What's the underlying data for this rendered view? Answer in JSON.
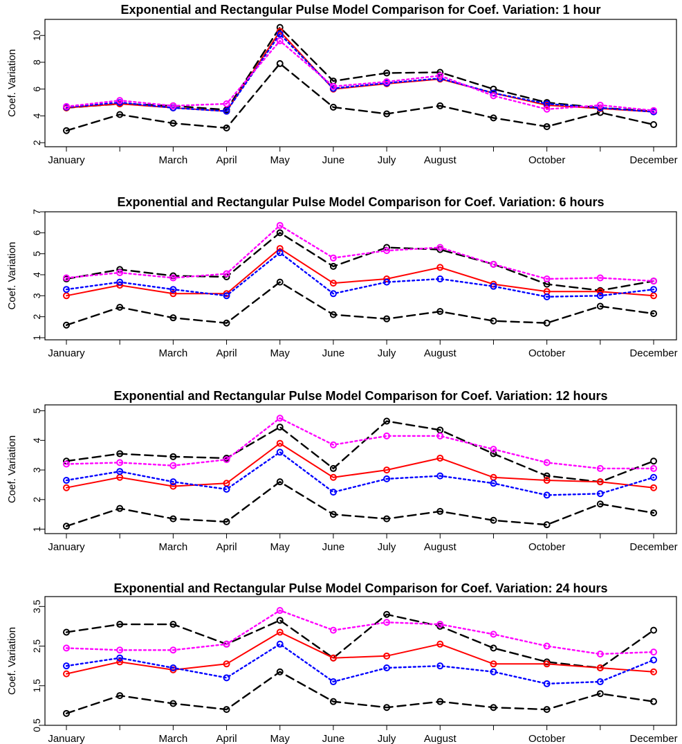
{
  "chart_data": [
    {
      "type": "line",
      "title": "Exponential and Rectangular Pulse Model Comparison for Coef. Variation: 1 hour",
      "xlabel": "",
      "ylabel": "Coef. Variation",
      "categories": [
        "January",
        "",
        "March",
        "April",
        "May",
        "June",
        "July",
        "August",
        "",
        "October",
        "",
        "December"
      ],
      "ylim": [
        1.7,
        11.2
      ],
      "yticks": [
        2,
        4,
        6,
        8,
        10
      ],
      "series": [
        {
          "color": "#000000",
          "dash": "dashed",
          "values": [
            4.6,
            4.9,
            4.75,
            4.45,
            10.6,
            6.6,
            7.2,
            7.25,
            6.0,
            5.0,
            4.6,
            4.35
          ]
        },
        {
          "color": "#000000",
          "dash": "dashed",
          "values": [
            2.9,
            4.1,
            3.45,
            3.1,
            7.9,
            4.65,
            4.15,
            4.75,
            3.85,
            3.2,
            4.25,
            3.35
          ]
        },
        {
          "color": "#ff0000",
          "dash": "solid",
          "values": [
            4.6,
            4.9,
            4.6,
            4.35,
            10.3,
            6.0,
            6.4,
            6.75,
            5.7,
            4.8,
            4.55,
            4.3
          ]
        },
        {
          "color": "#0000ff",
          "dash": "dotted",
          "values": [
            4.65,
            5.0,
            4.6,
            4.35,
            10.1,
            6.05,
            6.45,
            6.8,
            5.7,
            4.9,
            4.6,
            4.3
          ]
        },
        {
          "color": "#ff00ff",
          "dash": "dotted",
          "values": [
            4.7,
            5.15,
            4.75,
            4.9,
            9.6,
            6.2,
            6.55,
            7.0,
            5.5,
            4.5,
            4.8,
            4.4
          ]
        }
      ]
    },
    {
      "type": "line",
      "title": "Exponential and Rectangular Pulse Model Comparison for Coef. Variation: 6 hours",
      "xlabel": "",
      "ylabel": "Coef. Variation",
      "categories": [
        "January",
        "",
        "March",
        "April",
        "May",
        "June",
        "July",
        "August",
        "",
        "October",
        "",
        "December"
      ],
      "ylim": [
        0.9,
        7.0
      ],
      "yticks": [
        1,
        2,
        3,
        4,
        5,
        6,
        7
      ],
      "series": [
        {
          "color": "#000000",
          "dash": "dashed",
          "values": [
            3.8,
            4.25,
            3.95,
            3.9,
            6.0,
            4.4,
            5.3,
            5.2,
            4.5,
            3.55,
            3.25,
            3.7
          ]
        },
        {
          "color": "#000000",
          "dash": "dashed",
          "values": [
            1.6,
            2.45,
            1.95,
            1.7,
            3.65,
            2.1,
            1.9,
            2.25,
            1.8,
            1.7,
            2.5,
            2.15
          ]
        },
        {
          "color": "#ff0000",
          "dash": "solid",
          "values": [
            3.0,
            3.5,
            3.1,
            3.1,
            5.25,
            3.6,
            3.8,
            4.35,
            3.55,
            3.2,
            3.2,
            3.0
          ]
        },
        {
          "color": "#0000ff",
          "dash": "dotted",
          "values": [
            3.3,
            3.65,
            3.3,
            3.0,
            5.05,
            3.1,
            3.65,
            3.8,
            3.45,
            2.95,
            3.0,
            3.3
          ]
        },
        {
          "color": "#ff00ff",
          "dash": "dotted",
          "values": [
            3.85,
            4.1,
            3.85,
            4.05,
            6.35,
            4.8,
            5.15,
            5.3,
            4.5,
            3.8,
            3.85,
            3.7
          ]
        }
      ]
    },
    {
      "type": "line",
      "title": "Exponential and Rectangular Pulse Model Comparison for Coef. Variation: 12 hours",
      "xlabel": "",
      "ylabel": "Coef. Variation",
      "categories": [
        "January",
        "",
        "March",
        "April",
        "May",
        "June",
        "July",
        "August",
        "",
        "October",
        "",
        "December"
      ],
      "ylim": [
        0.85,
        5.2
      ],
      "yticks": [
        1,
        2,
        3,
        4,
        5
      ],
      "series": [
        {
          "color": "#000000",
          "dash": "dashed",
          "values": [
            3.3,
            3.55,
            3.45,
            3.4,
            4.45,
            3.05,
            4.65,
            4.35,
            3.55,
            2.8,
            2.6,
            3.3
          ]
        },
        {
          "color": "#000000",
          "dash": "dashed",
          "values": [
            1.1,
            1.7,
            1.35,
            1.25,
            2.6,
            1.5,
            1.35,
            1.6,
            1.3,
            1.15,
            1.85,
            1.55
          ]
        },
        {
          "color": "#ff0000",
          "dash": "solid",
          "values": [
            2.4,
            2.75,
            2.45,
            2.55,
            3.9,
            2.75,
            3.0,
            3.4,
            2.75,
            2.65,
            2.6,
            2.4
          ]
        },
        {
          "color": "#0000ff",
          "dash": "dotted",
          "values": [
            2.65,
            2.95,
            2.6,
            2.35,
            3.6,
            2.25,
            2.7,
            2.8,
            2.55,
            2.15,
            2.2,
            2.75
          ]
        },
        {
          "color": "#ff00ff",
          "dash": "dotted",
          "values": [
            3.2,
            3.25,
            3.15,
            3.35,
            4.75,
            3.85,
            4.15,
            4.15,
            3.7,
            3.25,
            3.05,
            3.05
          ]
        }
      ]
    },
    {
      "type": "line",
      "title": "Exponential and Rectangular Pulse Model Comparison for Coef. Variation: 24 hours",
      "xlabel": "",
      "ylabel": "Coef. Variation",
      "categories": [
        "January",
        "",
        "March",
        "April",
        "May",
        "June",
        "July",
        "August",
        "",
        "October",
        "",
        "December"
      ],
      "ylim": [
        0.5,
        3.75
      ],
      "yticks": [
        0.5,
        1.5,
        2.5,
        3.5
      ],
      "series": [
        {
          "color": "#000000",
          "dash": "dashed",
          "values": [
            2.85,
            3.05,
            3.05,
            2.55,
            3.15,
            2.2,
            3.3,
            3.0,
            2.45,
            2.1,
            1.95,
            2.9
          ]
        },
        {
          "color": "#000000",
          "dash": "dashed",
          "values": [
            0.8,
            1.25,
            1.05,
            0.9,
            1.85,
            1.1,
            0.95,
            1.1,
            0.95,
            0.9,
            1.3,
            1.1
          ]
        },
        {
          "color": "#ff0000",
          "dash": "solid",
          "values": [
            1.8,
            2.1,
            1.9,
            2.05,
            2.85,
            2.2,
            2.25,
            2.55,
            2.05,
            2.05,
            1.95,
            1.85
          ]
        },
        {
          "color": "#0000ff",
          "dash": "dotted",
          "values": [
            2.0,
            2.2,
            1.95,
            1.7,
            2.55,
            1.6,
            1.95,
            2.0,
            1.85,
            1.55,
            1.6,
            2.15
          ]
        },
        {
          "color": "#ff00ff",
          "dash": "dotted",
          "values": [
            2.45,
            2.4,
            2.4,
            2.55,
            3.4,
            2.9,
            3.1,
            3.05,
            2.8,
            2.5,
            2.3,
            2.35
          ]
        }
      ]
    }
  ]
}
